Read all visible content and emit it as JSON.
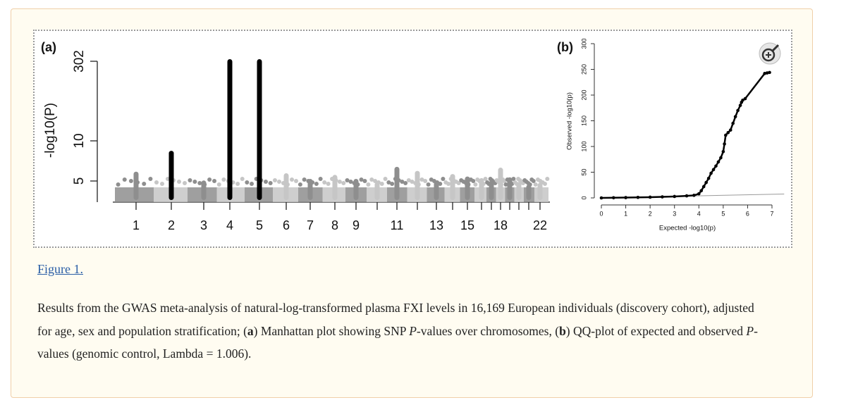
{
  "figure": {
    "link": "Figure 1.",
    "caption": [
      {
        "text": "Results from the GWAS meta-analysis of natural-log-transformed plasma FXI levels in 16,169 European individuals (discovery cohort), adjusted for age, sex and population stratification; ("
      },
      {
        "text": "a",
        "style": "bold"
      },
      {
        "text": ") Manhattan plot showing SNP "
      },
      {
        "text": "P",
        "style": "italic"
      },
      {
        "text": "-values over chromosomes, ("
      },
      {
        "text": "b",
        "style": "bold"
      },
      {
        "text": ") QQ-plot of expected and observed "
      },
      {
        "text": "P",
        "style": "italic"
      },
      {
        "text": "-values (genomic control, Lambda = 1.006)."
      }
    ]
  },
  "chart_data": [
    {
      "type": "manhattan",
      "panel_label": "(a)",
      "ylabel": "-log10(P)",
      "categories": [
        "1",
        "2",
        "3",
        "4",
        "5",
        "6",
        "7",
        "8",
        "9",
        null,
        "11",
        null,
        "13",
        null,
        "15",
        null,
        null,
        "18",
        null,
        null,
        null,
        "22"
      ],
      "values": [
        5.9,
        8.5,
        4.8,
        302,
        302,
        5.7,
        5.0,
        5.5,
        5.0,
        4.6,
        6.5,
        6.0,
        4.7,
        5.6,
        5.3,
        5.1,
        4.8,
        6.4,
        5.2,
        4.6,
        4.3,
        4.5
      ],
      "colors": [
        "#8e8e8e",
        "#c6c6c6"
      ],
      "peak_colors": [
        "#8e8e8e",
        "#000000",
        "#8e8e8e",
        "#000000",
        "#000000",
        "#c6c6c6",
        "#8e8e8e",
        "#c6c6c6",
        "#8e8e8e",
        "#c6c6c6",
        "#8e8e8e",
        "#c6c6c6",
        "#8e8e8e",
        "#c6c6c6",
        "#8e8e8e",
        "#c6c6c6",
        "#8e8e8e",
        "#c6c6c6",
        "#8e8e8e",
        "#c6c6c6",
        "#8e8e8e",
        "#c6c6c6"
      ],
      "ylim": [
        2.4,
        302
      ],
      "yticks": [
        5,
        10,
        302
      ]
    },
    {
      "type": "qq",
      "panel_label": "(b)",
      "xlabel": "Expected -log10(p)",
      "ylabel": "Observed -log10(p)",
      "x": [
        0,
        0.5,
        1,
        1.5,
        2,
        2.5,
        3,
        3.5,
        3.8,
        4.0,
        4.1,
        4.2,
        4.3,
        4.4,
        4.5,
        4.6,
        4.7,
        4.8,
        4.9,
        5.0,
        5.05,
        5.1,
        5.2,
        5.3,
        5.4,
        5.5,
        5.6,
        5.7,
        5.75,
        5.8,
        5.9,
        6.7,
        6.8,
        6.9
      ],
      "values": [
        0,
        0.3,
        0.6,
        1,
        1.4,
        2,
        2.8,
        4,
        5,
        8,
        14,
        22,
        30,
        38,
        48,
        55,
        62,
        70,
        78,
        90,
        105,
        122,
        127,
        132,
        145,
        158,
        170,
        180,
        186,
        190,
        193,
        242,
        243,
        244
      ],
      "color": "#000000",
      "reference_line": {
        "x": [
          0,
          7.5
        ],
        "values": [
          0,
          7.5
        ],
        "color": "#9a9a9a"
      },
      "xlim": [
        0,
        7.5
      ],
      "ylim": [
        0,
        300
      ],
      "xticks": [
        0,
        1,
        2,
        3,
        4,
        5,
        6,
        7
      ],
      "yticks": [
        0,
        50,
        100,
        150,
        200,
        250,
        300
      ]
    }
  ]
}
